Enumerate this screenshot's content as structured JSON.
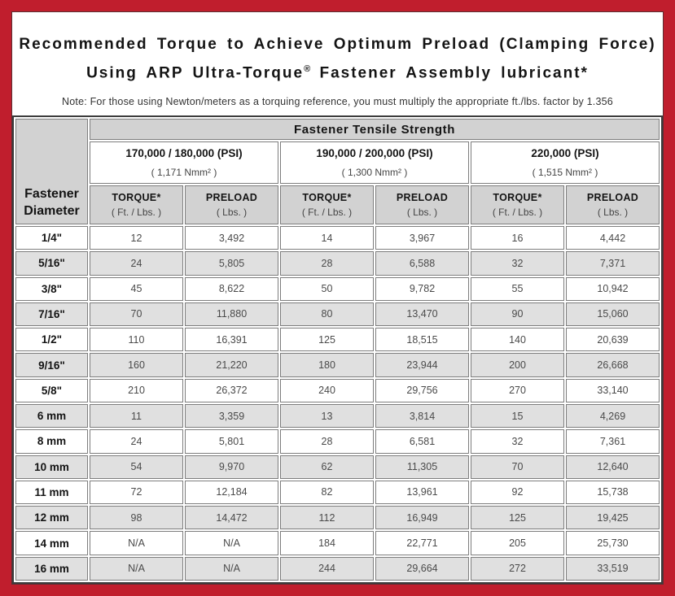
{
  "colors": {
    "frame_red": "#C01E2D",
    "header_gray": "#D2D2D2",
    "row_gray": "#E0E0E0"
  },
  "title": {
    "line1": "Recommended Torque to Achieve Optimum Preload (Clamping Force)",
    "line2_before_mark": "Using ARP Ultra-Torque",
    "registered_mark": "®",
    "line2_after_mark": " Fastener Assembly lubricant*",
    "note": "Note: For those using Newton/meters as a torquing reference, you must multiply the appropriate ft./lbs. factor by 1.356"
  },
  "table": {
    "corner_line1": "Fastener",
    "corner_line2": "Diameter",
    "tensile_header": "Fastener Tensile Strength",
    "groups": [
      {
        "psi": "170,000 / 180,000 (PSI)",
        "nmm": "( 1,171 Nmm² )"
      },
      {
        "psi": "190,000 / 200,000 (PSI)",
        "nmm": "( 1,300 Nmm² )"
      },
      {
        "psi": "220,000 (PSI)",
        "nmm": "( 1,515 Nmm² )"
      }
    ],
    "sub_headers": [
      {
        "top": "TORQUE*",
        "bottom": "( Ft. / Lbs. )"
      },
      {
        "top": "PRELOAD",
        "bottom": "( Lbs. )"
      },
      {
        "top": "TORQUE*",
        "bottom": "( Ft. / Lbs. )"
      },
      {
        "top": "PRELOAD",
        "bottom": "( Lbs. )"
      },
      {
        "top": "TORQUE*",
        "bottom": "( Ft. / Lbs. )"
      },
      {
        "top": "PRELOAD",
        "bottom": "( Lbs. )"
      }
    ],
    "rows": [
      {
        "diameter": "1/4\"",
        "values": [
          "12",
          "3,492",
          "14",
          "3,967",
          "16",
          "4,442"
        ]
      },
      {
        "diameter": "5/16\"",
        "values": [
          "24",
          "5,805",
          "28",
          "6,588",
          "32",
          "7,371"
        ]
      },
      {
        "diameter": "3/8\"",
        "values": [
          "45",
          "8,622",
          "50",
          "9,782",
          "55",
          "10,942"
        ]
      },
      {
        "diameter": "7/16\"",
        "values": [
          "70",
          "11,880",
          "80",
          "13,470",
          "90",
          "15,060"
        ]
      },
      {
        "diameter": "1/2\"",
        "values": [
          "110",
          "16,391",
          "125",
          "18,515",
          "140",
          "20,639"
        ]
      },
      {
        "diameter": "9/16\"",
        "values": [
          "160",
          "21,220",
          "180",
          "23,944",
          "200",
          "26,668"
        ]
      },
      {
        "diameter": "5/8\"",
        "values": [
          "210",
          "26,372",
          "240",
          "29,756",
          "270",
          "33,140"
        ]
      },
      {
        "diameter": "6 mm",
        "values": [
          "11",
          "3,359",
          "13",
          "3,814",
          "15",
          "4,269"
        ]
      },
      {
        "diameter": "8 mm",
        "values": [
          "24",
          "5,801",
          "28",
          "6,581",
          "32",
          "7,361"
        ]
      },
      {
        "diameter": "10 mm",
        "values": [
          "54",
          "9,970",
          "62",
          "11,305",
          "70",
          "12,640"
        ]
      },
      {
        "diameter": "11 mm",
        "values": [
          "72",
          "12,184",
          "82",
          "13,961",
          "92",
          "15,738"
        ]
      },
      {
        "diameter": "12 mm",
        "values": [
          "98",
          "14,472",
          "112",
          "16,949",
          "125",
          "19,425"
        ]
      },
      {
        "diameter": "14 mm",
        "values": [
          "N/A",
          "N/A",
          "184",
          "22,771",
          "205",
          "25,730"
        ]
      },
      {
        "diameter": "16 mm",
        "values": [
          "N/A",
          "N/A",
          "244",
          "29,664",
          "272",
          "33,519"
        ]
      }
    ]
  }
}
